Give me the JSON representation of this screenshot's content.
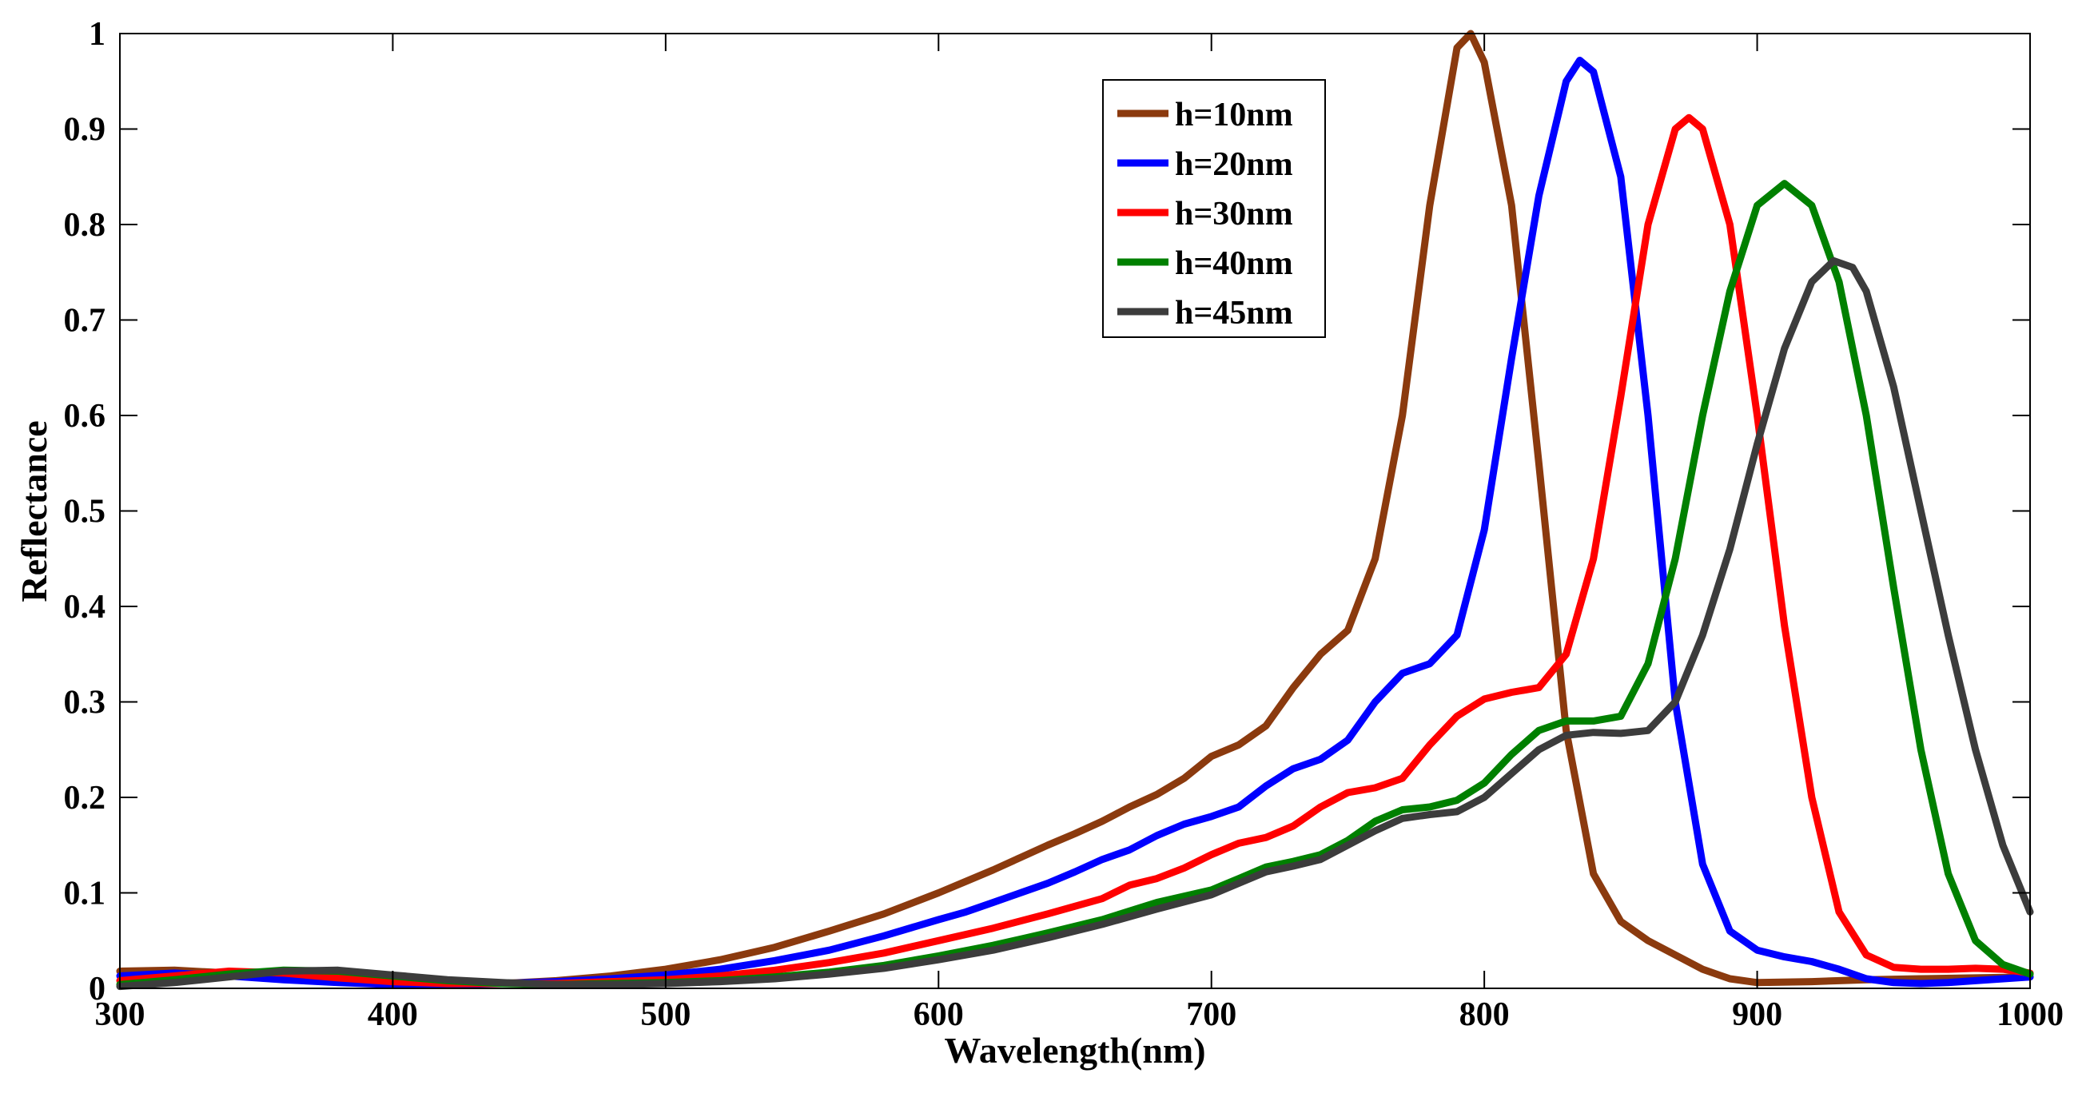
{
  "chart_data": {
    "type": "line",
    "title": "",
    "xlabel": "Wavelength(nm)",
    "ylabel": "Reflectance",
    "xlim": [
      300,
      1000
    ],
    "ylim": [
      0,
      1
    ],
    "x_ticks": [
      "300",
      "400",
      "500",
      "600",
      "700",
      "800",
      "900",
      "1000"
    ],
    "y_ticks": [
      "0",
      "0.1",
      "0.2",
      "0.3",
      "0.4",
      "0.5",
      "0.6",
      "0.7",
      "0.8",
      "0.9",
      "1"
    ],
    "grid": false,
    "legend_position": "top-center",
    "series": [
      {
        "name": "h=10nm",
        "color": "#8B3A0E",
        "points": [
          [
            300,
            0.018
          ],
          [
            320,
            0.019
          ],
          [
            340,
            0.016
          ],
          [
            360,
            0.012
          ],
          [
            380,
            0.008
          ],
          [
            400,
            0.006
          ],
          [
            420,
            0.005
          ],
          [
            440,
            0.005
          ],
          [
            460,
            0.008
          ],
          [
            480,
            0.013
          ],
          [
            500,
            0.02
          ],
          [
            520,
            0.03
          ],
          [
            540,
            0.043
          ],
          [
            560,
            0.06
          ],
          [
            580,
            0.078
          ],
          [
            600,
            0.1
          ],
          [
            610,
            0.112
          ],
          [
            620,
            0.124
          ],
          [
            630,
            0.137
          ],
          [
            640,
            0.15
          ],
          [
            650,
            0.162
          ],
          [
            660,
            0.175
          ],
          [
            670,
            0.19
          ],
          [
            680,
            0.203
          ],
          [
            690,
            0.22
          ],
          [
            700,
            0.243
          ],
          [
            710,
            0.255
          ],
          [
            720,
            0.275
          ],
          [
            730,
            0.315
          ],
          [
            740,
            0.35
          ],
          [
            750,
            0.375
          ],
          [
            760,
            0.45
          ],
          [
            770,
            0.6
          ],
          [
            780,
            0.82
          ],
          [
            790,
            0.985
          ],
          [
            795,
            1.0
          ],
          [
            800,
            0.97
          ],
          [
            810,
            0.82
          ],
          [
            820,
            0.55
          ],
          [
            830,
            0.27
          ],
          [
            840,
            0.12
          ],
          [
            850,
            0.07
          ],
          [
            860,
            0.05
          ],
          [
            870,
            0.035
          ],
          [
            880,
            0.02
          ],
          [
            890,
            0.01
          ],
          [
            900,
            0.006
          ],
          [
            920,
            0.007
          ],
          [
            940,
            0.009
          ],
          [
            960,
            0.01
          ],
          [
            980,
            0.011
          ],
          [
            1000,
            0.012
          ]
        ]
      },
      {
        "name": "h=20nm",
        "color": "#0000FF",
        "points": [
          [
            300,
            0.013
          ],
          [
            320,
            0.016
          ],
          [
            340,
            0.013
          ],
          [
            360,
            0.009
          ],
          [
            380,
            0.006
          ],
          [
            400,
            0.004
          ],
          [
            420,
            0.004
          ],
          [
            440,
            0.005
          ],
          [
            460,
            0.007
          ],
          [
            480,
            0.01
          ],
          [
            500,
            0.014
          ],
          [
            520,
            0.02
          ],
          [
            540,
            0.029
          ],
          [
            560,
            0.04
          ],
          [
            580,
            0.055
          ],
          [
            600,
            0.072
          ],
          [
            610,
            0.08
          ],
          [
            620,
            0.09
          ],
          [
            630,
            0.1
          ],
          [
            640,
            0.11
          ],
          [
            650,
            0.122
          ],
          [
            660,
            0.135
          ],
          [
            670,
            0.145
          ],
          [
            680,
            0.16
          ],
          [
            690,
            0.172
          ],
          [
            700,
            0.18
          ],
          [
            710,
            0.19
          ],
          [
            720,
            0.212
          ],
          [
            730,
            0.23
          ],
          [
            740,
            0.24
          ],
          [
            750,
            0.26
          ],
          [
            760,
            0.3
          ],
          [
            770,
            0.33
          ],
          [
            780,
            0.34
          ],
          [
            790,
            0.37
          ],
          [
            800,
            0.48
          ],
          [
            810,
            0.66
          ],
          [
            820,
            0.83
          ],
          [
            830,
            0.95
          ],
          [
            835,
            0.972
          ],
          [
            840,
            0.96
          ],
          [
            850,
            0.85
          ],
          [
            860,
            0.6
          ],
          [
            870,
            0.3
          ],
          [
            880,
            0.13
          ],
          [
            890,
            0.06
          ],
          [
            900,
            0.04
          ],
          [
            910,
            0.033
          ],
          [
            920,
            0.028
          ],
          [
            930,
            0.02
          ],
          [
            940,
            0.01
          ],
          [
            950,
            0.006
          ],
          [
            960,
            0.005
          ],
          [
            970,
            0.006
          ],
          [
            980,
            0.008
          ],
          [
            1000,
            0.012
          ]
        ]
      },
      {
        "name": "h=30nm",
        "color": "#FF0000",
        "points": [
          [
            300,
            0.008
          ],
          [
            320,
            0.013
          ],
          [
            340,
            0.018
          ],
          [
            360,
            0.016
          ],
          [
            380,
            0.011
          ],
          [
            400,
            0.007
          ],
          [
            420,
            0.005
          ],
          [
            440,
            0.005
          ],
          [
            460,
            0.005
          ],
          [
            480,
            0.007
          ],
          [
            500,
            0.009
          ],
          [
            520,
            0.013
          ],
          [
            540,
            0.019
          ],
          [
            560,
            0.027
          ],
          [
            580,
            0.037
          ],
          [
            600,
            0.05
          ],
          [
            620,
            0.063
          ],
          [
            640,
            0.078
          ],
          [
            660,
            0.094
          ],
          [
            670,
            0.108
          ],
          [
            680,
            0.115
          ],
          [
            690,
            0.126
          ],
          [
            700,
            0.14
          ],
          [
            710,
            0.152
          ],
          [
            720,
            0.158
          ],
          [
            730,
            0.17
          ],
          [
            740,
            0.19
          ],
          [
            750,
            0.205
          ],
          [
            760,
            0.21
          ],
          [
            770,
            0.22
          ],
          [
            780,
            0.255
          ],
          [
            790,
            0.285
          ],
          [
            800,
            0.303
          ],
          [
            810,
            0.31
          ],
          [
            820,
            0.315
          ],
          [
            830,
            0.35
          ],
          [
            840,
            0.45
          ],
          [
            850,
            0.62
          ],
          [
            860,
            0.8
          ],
          [
            870,
            0.9
          ],
          [
            875,
            0.912
          ],
          [
            880,
            0.9
          ],
          [
            890,
            0.8
          ],
          [
            900,
            0.6
          ],
          [
            910,
            0.38
          ],
          [
            920,
            0.2
          ],
          [
            930,
            0.08
          ],
          [
            940,
            0.035
          ],
          [
            950,
            0.022
          ],
          [
            960,
            0.02
          ],
          [
            970,
            0.02
          ],
          [
            980,
            0.021
          ],
          [
            990,
            0.02
          ],
          [
            1000,
            0.016
          ]
        ]
      },
      {
        "name": "h=40nm",
        "color": "#008000",
        "points": [
          [
            300,
            0.004
          ],
          [
            320,
            0.009
          ],
          [
            340,
            0.015
          ],
          [
            360,
            0.019
          ],
          [
            380,
            0.018
          ],
          [
            400,
            0.013
          ],
          [
            420,
            0.008
          ],
          [
            440,
            0.005
          ],
          [
            460,
            0.004
          ],
          [
            480,
            0.005
          ],
          [
            500,
            0.006
          ],
          [
            520,
            0.008
          ],
          [
            540,
            0.012
          ],
          [
            560,
            0.017
          ],
          [
            580,
            0.024
          ],
          [
            600,
            0.034
          ],
          [
            620,
            0.045
          ],
          [
            640,
            0.058
          ],
          [
            660,
            0.072
          ],
          [
            680,
            0.09
          ],
          [
            700,
            0.103
          ],
          [
            710,
            0.115
          ],
          [
            720,
            0.127
          ],
          [
            730,
            0.133
          ],
          [
            740,
            0.14
          ],
          [
            750,
            0.155
          ],
          [
            760,
            0.175
          ],
          [
            770,
            0.187
          ],
          [
            780,
            0.19
          ],
          [
            790,
            0.197
          ],
          [
            800,
            0.215
          ],
          [
            810,
            0.245
          ],
          [
            820,
            0.27
          ],
          [
            830,
            0.28
          ],
          [
            840,
            0.28
          ],
          [
            850,
            0.285
          ],
          [
            860,
            0.34
          ],
          [
            870,
            0.45
          ],
          [
            880,
            0.6
          ],
          [
            890,
            0.73
          ],
          [
            900,
            0.82
          ],
          [
            910,
            0.843
          ],
          [
            920,
            0.82
          ],
          [
            930,
            0.74
          ],
          [
            940,
            0.6
          ],
          [
            950,
            0.42
          ],
          [
            960,
            0.25
          ],
          [
            970,
            0.12
          ],
          [
            980,
            0.05
          ],
          [
            990,
            0.025
          ],
          [
            1000,
            0.015
          ]
        ]
      },
      {
        "name": "h=45nm",
        "color": "#3C3C3C",
        "points": [
          [
            300,
            0.002
          ],
          [
            320,
            0.006
          ],
          [
            340,
            0.012
          ],
          [
            360,
            0.018
          ],
          [
            380,
            0.019
          ],
          [
            400,
            0.014
          ],
          [
            420,
            0.009
          ],
          [
            440,
            0.006
          ],
          [
            460,
            0.004
          ],
          [
            480,
            0.004
          ],
          [
            500,
            0.005
          ],
          [
            520,
            0.007
          ],
          [
            540,
            0.01
          ],
          [
            560,
            0.015
          ],
          [
            580,
            0.021
          ],
          [
            600,
            0.03
          ],
          [
            620,
            0.04
          ],
          [
            640,
            0.053
          ],
          [
            660,
            0.067
          ],
          [
            680,
            0.083
          ],
          [
            700,
            0.098
          ],
          [
            710,
            0.11
          ],
          [
            720,
            0.122
          ],
          [
            730,
            0.128
          ],
          [
            740,
            0.135
          ],
          [
            750,
            0.15
          ],
          [
            760,
            0.165
          ],
          [
            770,
            0.178
          ],
          [
            780,
            0.182
          ],
          [
            790,
            0.185
          ],
          [
            800,
            0.2
          ],
          [
            810,
            0.225
          ],
          [
            820,
            0.25
          ],
          [
            830,
            0.265
          ],
          [
            840,
            0.268
          ],
          [
            850,
            0.267
          ],
          [
            860,
            0.27
          ],
          [
            870,
            0.3
          ],
          [
            880,
            0.37
          ],
          [
            890,
            0.46
          ],
          [
            900,
            0.57
          ],
          [
            910,
            0.67
          ],
          [
            920,
            0.74
          ],
          [
            928,
            0.762
          ],
          [
            935,
            0.755
          ],
          [
            940,
            0.73
          ],
          [
            950,
            0.63
          ],
          [
            960,
            0.5
          ],
          [
            970,
            0.37
          ],
          [
            980,
            0.25
          ],
          [
            990,
            0.15
          ],
          [
            1000,
            0.08
          ]
        ]
      }
    ]
  }
}
